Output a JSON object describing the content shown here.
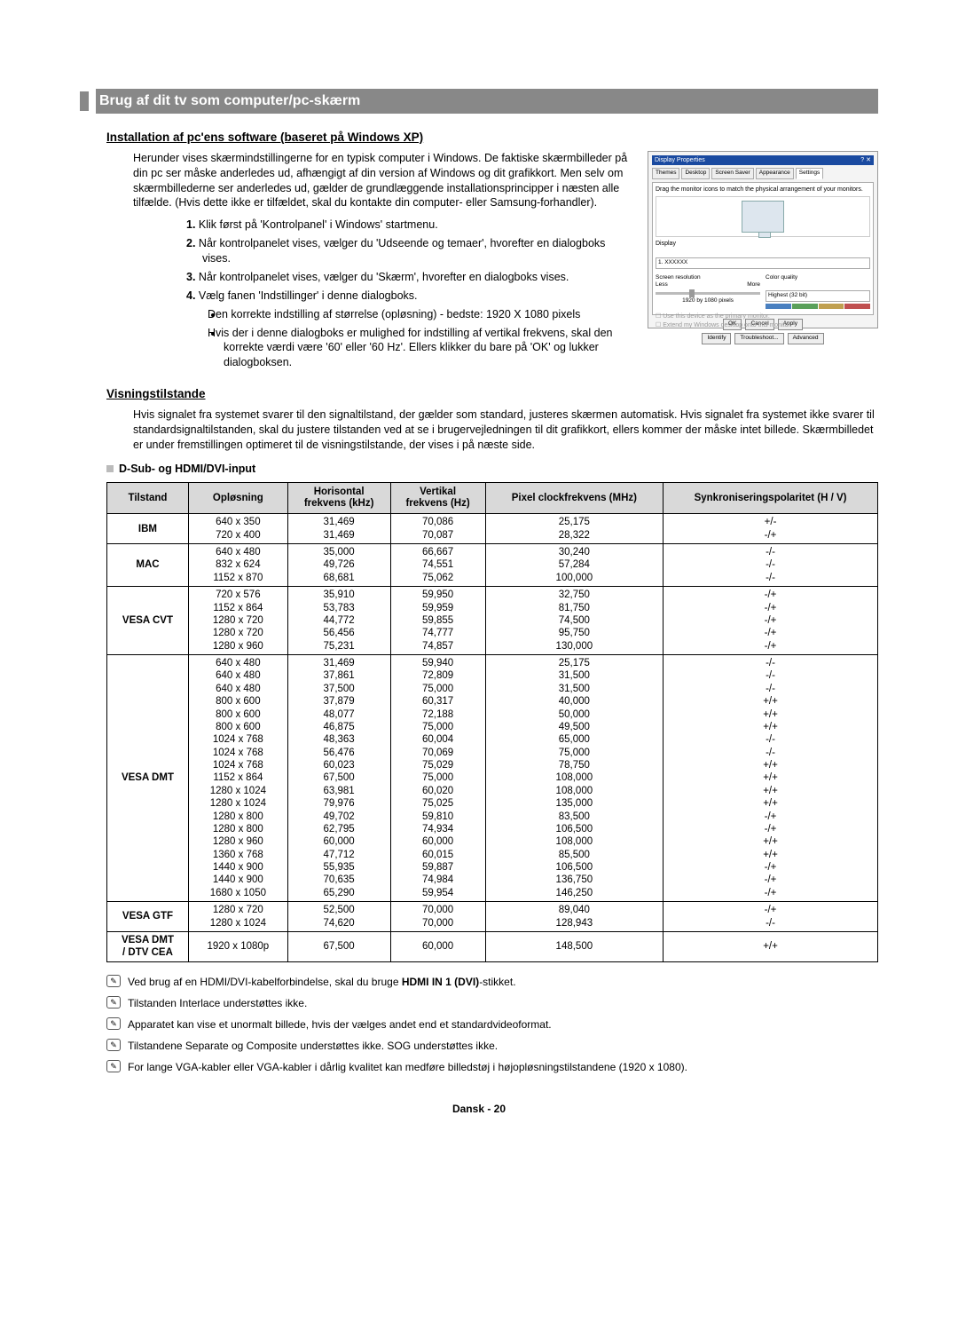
{
  "title": "Brug af dit tv som computer/pc-skærm",
  "section1_heading": "Installation af pc'ens software (baseret på Windows XP)",
  "intro": "Herunder vises skærmindstillingerne for en typisk computer i Windows. De faktiske skærmbilleder på din pc ser måske anderledes ud, afhængigt af din version af Windows og dit grafikkort. Men selv om skærmbillederne ser anderledes ud, gælder de grundlæggende installationsprincipper i næsten alle tilfælde. (Hvis dette ikke er tilfældet, skal du kontakte din computer- eller Samsung-forhandler).",
  "steps": [
    "Klik først på 'Kontrolpanel' i Windows' startmenu.",
    "Når kontrolpanelet vises, vælger du 'Udseende og temaer', hvorefter en dialogboks vises.",
    "Når kontrolpanelet vises, vælger du 'Skærm', hvorefter en dialogboks vises.",
    "Vælg fanen 'Indstillinger' i denne dialogboks."
  ],
  "sub_bullets": [
    "Den korrekte indstilling af størrelse (opløsning) - bedste: 1920 X 1080 pixels",
    "Hvis der i denne dialogboks er mulighed for indstilling af vertikal frekvens, skal den korrekte værdi være '60' eller '60 Hz'. Ellers klikker du bare på 'OK' og lukker dialogboksen."
  ],
  "dialog": {
    "title": "Display Properties",
    "tabs": [
      "Themes",
      "Desktop",
      "Screen Saver",
      "Appearance",
      "Settings"
    ],
    "drag_msg": "Drag the monitor icons to match the physical arrangement of your monitors.",
    "display_label": "Display",
    "display_value": "1. XXXXXX",
    "res_label": "Screen resolution",
    "res_less": "Less",
    "res_more": "More",
    "res_value": "1920 by 1080 pixels",
    "cq_label": "Color quality",
    "cq_value": "Highest (32 bit)",
    "chk1": "Use this device as the primary monitor.",
    "chk2": "Extend my Windows desktop onto this monitor.",
    "btns1": [
      "Identify",
      "Troubleshoot...",
      "Advanced"
    ],
    "btns2": [
      "OK",
      "Cancel",
      "Apply"
    ]
  },
  "section2_heading": "Visningstilstande",
  "vis_text": "Hvis signalet fra systemet svarer til den signaltilstand, der gælder som standard, justeres skærmen automatisk. Hvis signalet fra systemet ikke svarer til standardsignaltilstanden, skal du justere tilstanden ved at se i brugervejledningen til dit grafikkort, ellers kommer der måske intet billede. Skærmbilledet er under fremstillingen optimeret til de visningstilstande, der vises i på næste side.",
  "subtable_label": "D-Sub- og HDMI/DVI-input",
  "col_headers": [
    "Tilstand",
    "Opløsning",
    "Horisontal frekvens (kHz)",
    "Vertikal frekvens (Hz)",
    "Pixel clockfrekvens (MHz)",
    "Synkroniseringspolaritet (H / V)"
  ],
  "rows": [
    {
      "mode": "IBM",
      "res": [
        "640 x 350",
        "720 x 400"
      ],
      "h": [
        "31,469",
        "31,469"
      ],
      "v": [
        "70,086",
        "70,087"
      ],
      "p": [
        "25,175",
        "28,322"
      ],
      "s": [
        "+/-",
        "-/+"
      ]
    },
    {
      "mode": "MAC",
      "res": [
        "640 x 480",
        "832 x 624",
        "1152 x 870"
      ],
      "h": [
        "35,000",
        "49,726",
        "68,681"
      ],
      "v": [
        "66,667",
        "74,551",
        "75,062"
      ],
      "p": [
        "30,240",
        "57,284",
        "100,000"
      ],
      "s": [
        "-/-",
        "-/-",
        "-/-"
      ]
    },
    {
      "mode": "VESA CVT",
      "res": [
        "720 x 576",
        "1152 x 864",
        "1280 x 720",
        "1280 x 720",
        "1280 x 960"
      ],
      "h": [
        "35,910",
        "53,783",
        "44,772",
        "56,456",
        "75,231"
      ],
      "v": [
        "59,950",
        "59,959",
        "59,855",
        "74,777",
        "74,857"
      ],
      "p": [
        "32,750",
        "81,750",
        "74,500",
        "95,750",
        "130,000"
      ],
      "s": [
        "-/+",
        "-/+",
        "-/+",
        "-/+",
        "-/+"
      ]
    },
    {
      "mode": "VESA DMT",
      "res": [
        "640 x 480",
        "640 x 480",
        "640 x 480",
        "800 x 600",
        "800 x 600",
        "800 x 600",
        "1024 x 768",
        "1024 x 768",
        "1024 x 768",
        "1152 x 864",
        "1280 x 1024",
        "1280 x 1024",
        "1280 x 800",
        "1280 x 800",
        "1280 x 960",
        "1360 x 768",
        "1440 x 900",
        "1440 x 900",
        "1680 x 1050"
      ],
      "h": [
        "31,469",
        "37,861",
        "37,500",
        "37,879",
        "48,077",
        "46,875",
        "48,363",
        "56,476",
        "60,023",
        "67,500",
        "63,981",
        "79,976",
        "49,702",
        "62,795",
        "60,000",
        "47,712",
        "55,935",
        "70,635",
        "65,290"
      ],
      "v": [
        "59,940",
        "72,809",
        "75,000",
        "60,317",
        "72,188",
        "75,000",
        "60,004",
        "70,069",
        "75,029",
        "75,000",
        "60,020",
        "75,025",
        "59,810",
        "74,934",
        "60,000",
        "60,015",
        "59,887",
        "74,984",
        "59,954"
      ],
      "p": [
        "25,175",
        "31,500",
        "31,500",
        "40,000",
        "50,000",
        "49,500",
        "65,000",
        "75,000",
        "78,750",
        "108,000",
        "108,000",
        "135,000",
        "83,500",
        "106,500",
        "108,000",
        "85,500",
        "106,500",
        "136,750",
        "146,250"
      ],
      "s": [
        "-/-",
        "-/-",
        "-/-",
        "+/+",
        "+/+",
        "+/+",
        "-/-",
        "-/-",
        "+/+",
        "+/+",
        "+/+",
        "+/+",
        "-/+",
        "-/+",
        "+/+",
        "+/+",
        "-/+",
        "-/+",
        "-/+"
      ]
    },
    {
      "mode": "VESA GTF",
      "res": [
        "1280 x 720",
        "1280 x 1024"
      ],
      "h": [
        "52,500",
        "74,620"
      ],
      "v": [
        "70,000",
        "70,000"
      ],
      "p": [
        "89,040",
        "128,943"
      ],
      "s": [
        "-/+",
        "-/-"
      ]
    },
    {
      "mode": "VESA DMT / DTV CEA",
      "res": [
        "1920 x 1080p"
      ],
      "h": [
        "67,500"
      ],
      "v": [
        "60,000"
      ],
      "p": [
        "148,500"
      ],
      "s": [
        "+/+"
      ]
    }
  ],
  "notes_html": [
    "Ved brug af en HDMI/DVI-kabelforbindelse, skal du bruge <b>HDMI IN 1 (DVI)</b>-stikket.",
    "Tilstanden Interlace understøttes ikke.",
    "Apparatet kan vise et unormalt billede, hvis der vælges andet end et standardvideoformat.",
    "Tilstandene Separate og Composite understøttes ikke. SOG understøttes ikke.",
    "For lange VGA-kabler eller VGA-kabler i dårlig kvalitet kan medføre billedstøj i højopløsningstilstandene (1920 x 1080)."
  ],
  "footer_label": "Dansk - ",
  "footer_page": "20"
}
